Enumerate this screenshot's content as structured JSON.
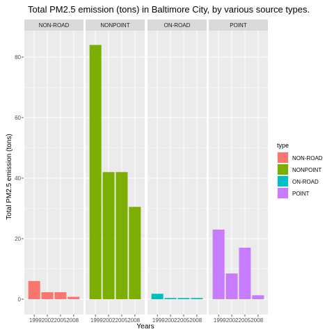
{
  "chart_data": {
    "type": "bar",
    "title": "Total PM2.5 emission (tons) in Baltimore City, by various source types.",
    "xlabel": "Years",
    "ylabel": "Total PM2.5 emission (tons)",
    "ylim": [
      0,
      88
    ],
    "yticks": [
      0,
      20,
      40,
      60,
      80
    ],
    "categories": [
      "1999",
      "2002",
      "2005",
      "2008"
    ],
    "x_tick_labels": "1999200220052008",
    "grid": true,
    "legend": {
      "title": "type",
      "placement": "right",
      "entries": [
        {
          "label": "NON-ROAD",
          "color": "#F8766D"
        },
        {
          "label": "NONPOINT",
          "color": "#7CAE00"
        },
        {
          "label": "ON-ROAD",
          "color": "#00BFC4"
        },
        {
          "label": "POINT",
          "color": "#C77CFF"
        }
      ]
    },
    "facets": [
      {
        "name": "NON-ROAD",
        "color": "#F8766D",
        "values": [
          6.0,
          2.3,
          2.3,
          0.8
        ]
      },
      {
        "name": "NONPOINT",
        "color": "#7CAE00",
        "values": [
          84.0,
          42.0,
          42.0,
          30.5
        ]
      },
      {
        "name": "ON-ROAD",
        "color": "#00BFC4",
        "values": [
          1.8,
          0.4,
          0.4,
          0.4
        ]
      },
      {
        "name": "POINT",
        "color": "#C77CFF",
        "values": [
          23.0,
          8.5,
          17.0,
          1.3
        ]
      }
    ]
  }
}
